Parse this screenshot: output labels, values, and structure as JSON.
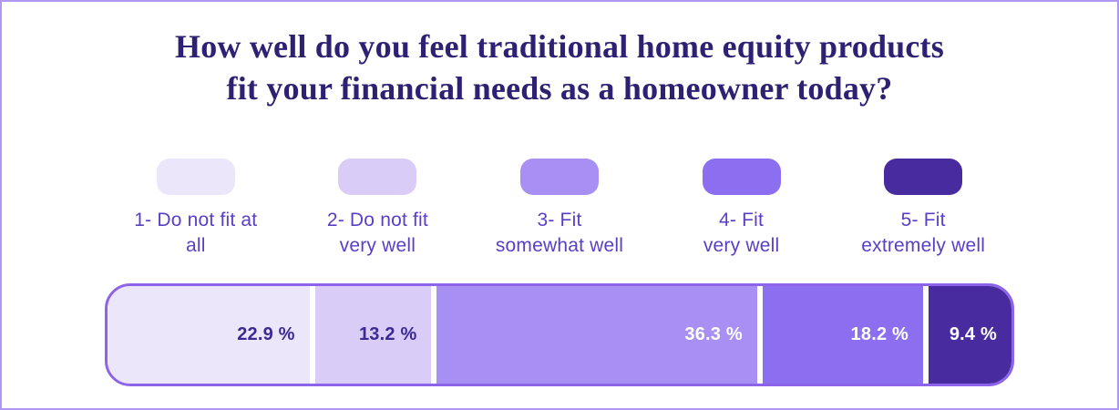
{
  "title": {
    "line1": "How well do you feel traditional home equity products",
    "line2": "fit your financial needs as a homeowner today?"
  },
  "colors": {
    "page_border": "#B097F4",
    "bar_border": "#8C63E9",
    "title_text": "#2E2173",
    "legend_text": "#5B3EC8",
    "pct_text_dark": "#3B2A94",
    "pct_text_light": "#FFFFFF"
  },
  "chart_data": {
    "type": "bar",
    "orientation": "horizontal",
    "stacked": true,
    "title": "How well do you feel traditional home equity products fit your financial needs as a homeowner today?",
    "categories": [
      "1- Do not fit at all",
      "2- Do not fit very well",
      "3- Fit somewhat well",
      "4- Fit very well",
      "5- Fit extremely well"
    ],
    "values": [
      22.9,
      13.2,
      36.3,
      18.2,
      9.4
    ],
    "value_labels": [
      "22.9 %",
      "13.2 %",
      "36.3 %",
      "18.2 %",
      "9.4 %"
    ],
    "segment_colors": [
      "#ECE6FB",
      "#D9CCF7",
      "#A88FF3",
      "#8C6EF0",
      "#482B9F"
    ],
    "unit": "%",
    "total": 100,
    "legend_position": "top",
    "grid": false
  },
  "legend": {
    "items": [
      {
        "line1": "1- Do not fit at",
        "line2": "all",
        "swatch_color": "#ECE6FB"
      },
      {
        "line1": "2- Do not fit",
        "line2": "very well",
        "swatch_color": "#D9CCF7"
      },
      {
        "line1": "3- Fit",
        "line2": "somewhat well",
        "swatch_color": "#A88FF3"
      },
      {
        "line1": "4- Fit",
        "line2": "very well",
        "swatch_color": "#8C6EF0"
      },
      {
        "line1": "5- Fit",
        "line2": "extremely well",
        "swatch_color": "#482B9F"
      }
    ]
  },
  "bar": {
    "segments": [
      {
        "label": "22.9 %",
        "value": 22.9,
        "bg": "#ECE6FB",
        "text_color": "#3B2A94"
      },
      {
        "label": "13.2 %",
        "value": 13.2,
        "bg": "#D9CCF7",
        "text_color": "#3B2A94"
      },
      {
        "label": "36.3 %",
        "value": 36.3,
        "bg": "#A88FF3",
        "text_color": "#FFFFFF"
      },
      {
        "label": "18.2 %",
        "value": 18.2,
        "bg": "#8C6EF0",
        "text_color": "#FFFFFF"
      },
      {
        "label": "9.4 %",
        "value": 9.4,
        "bg": "#482B9F",
        "text_color": "#FFFFFF"
      }
    ]
  }
}
